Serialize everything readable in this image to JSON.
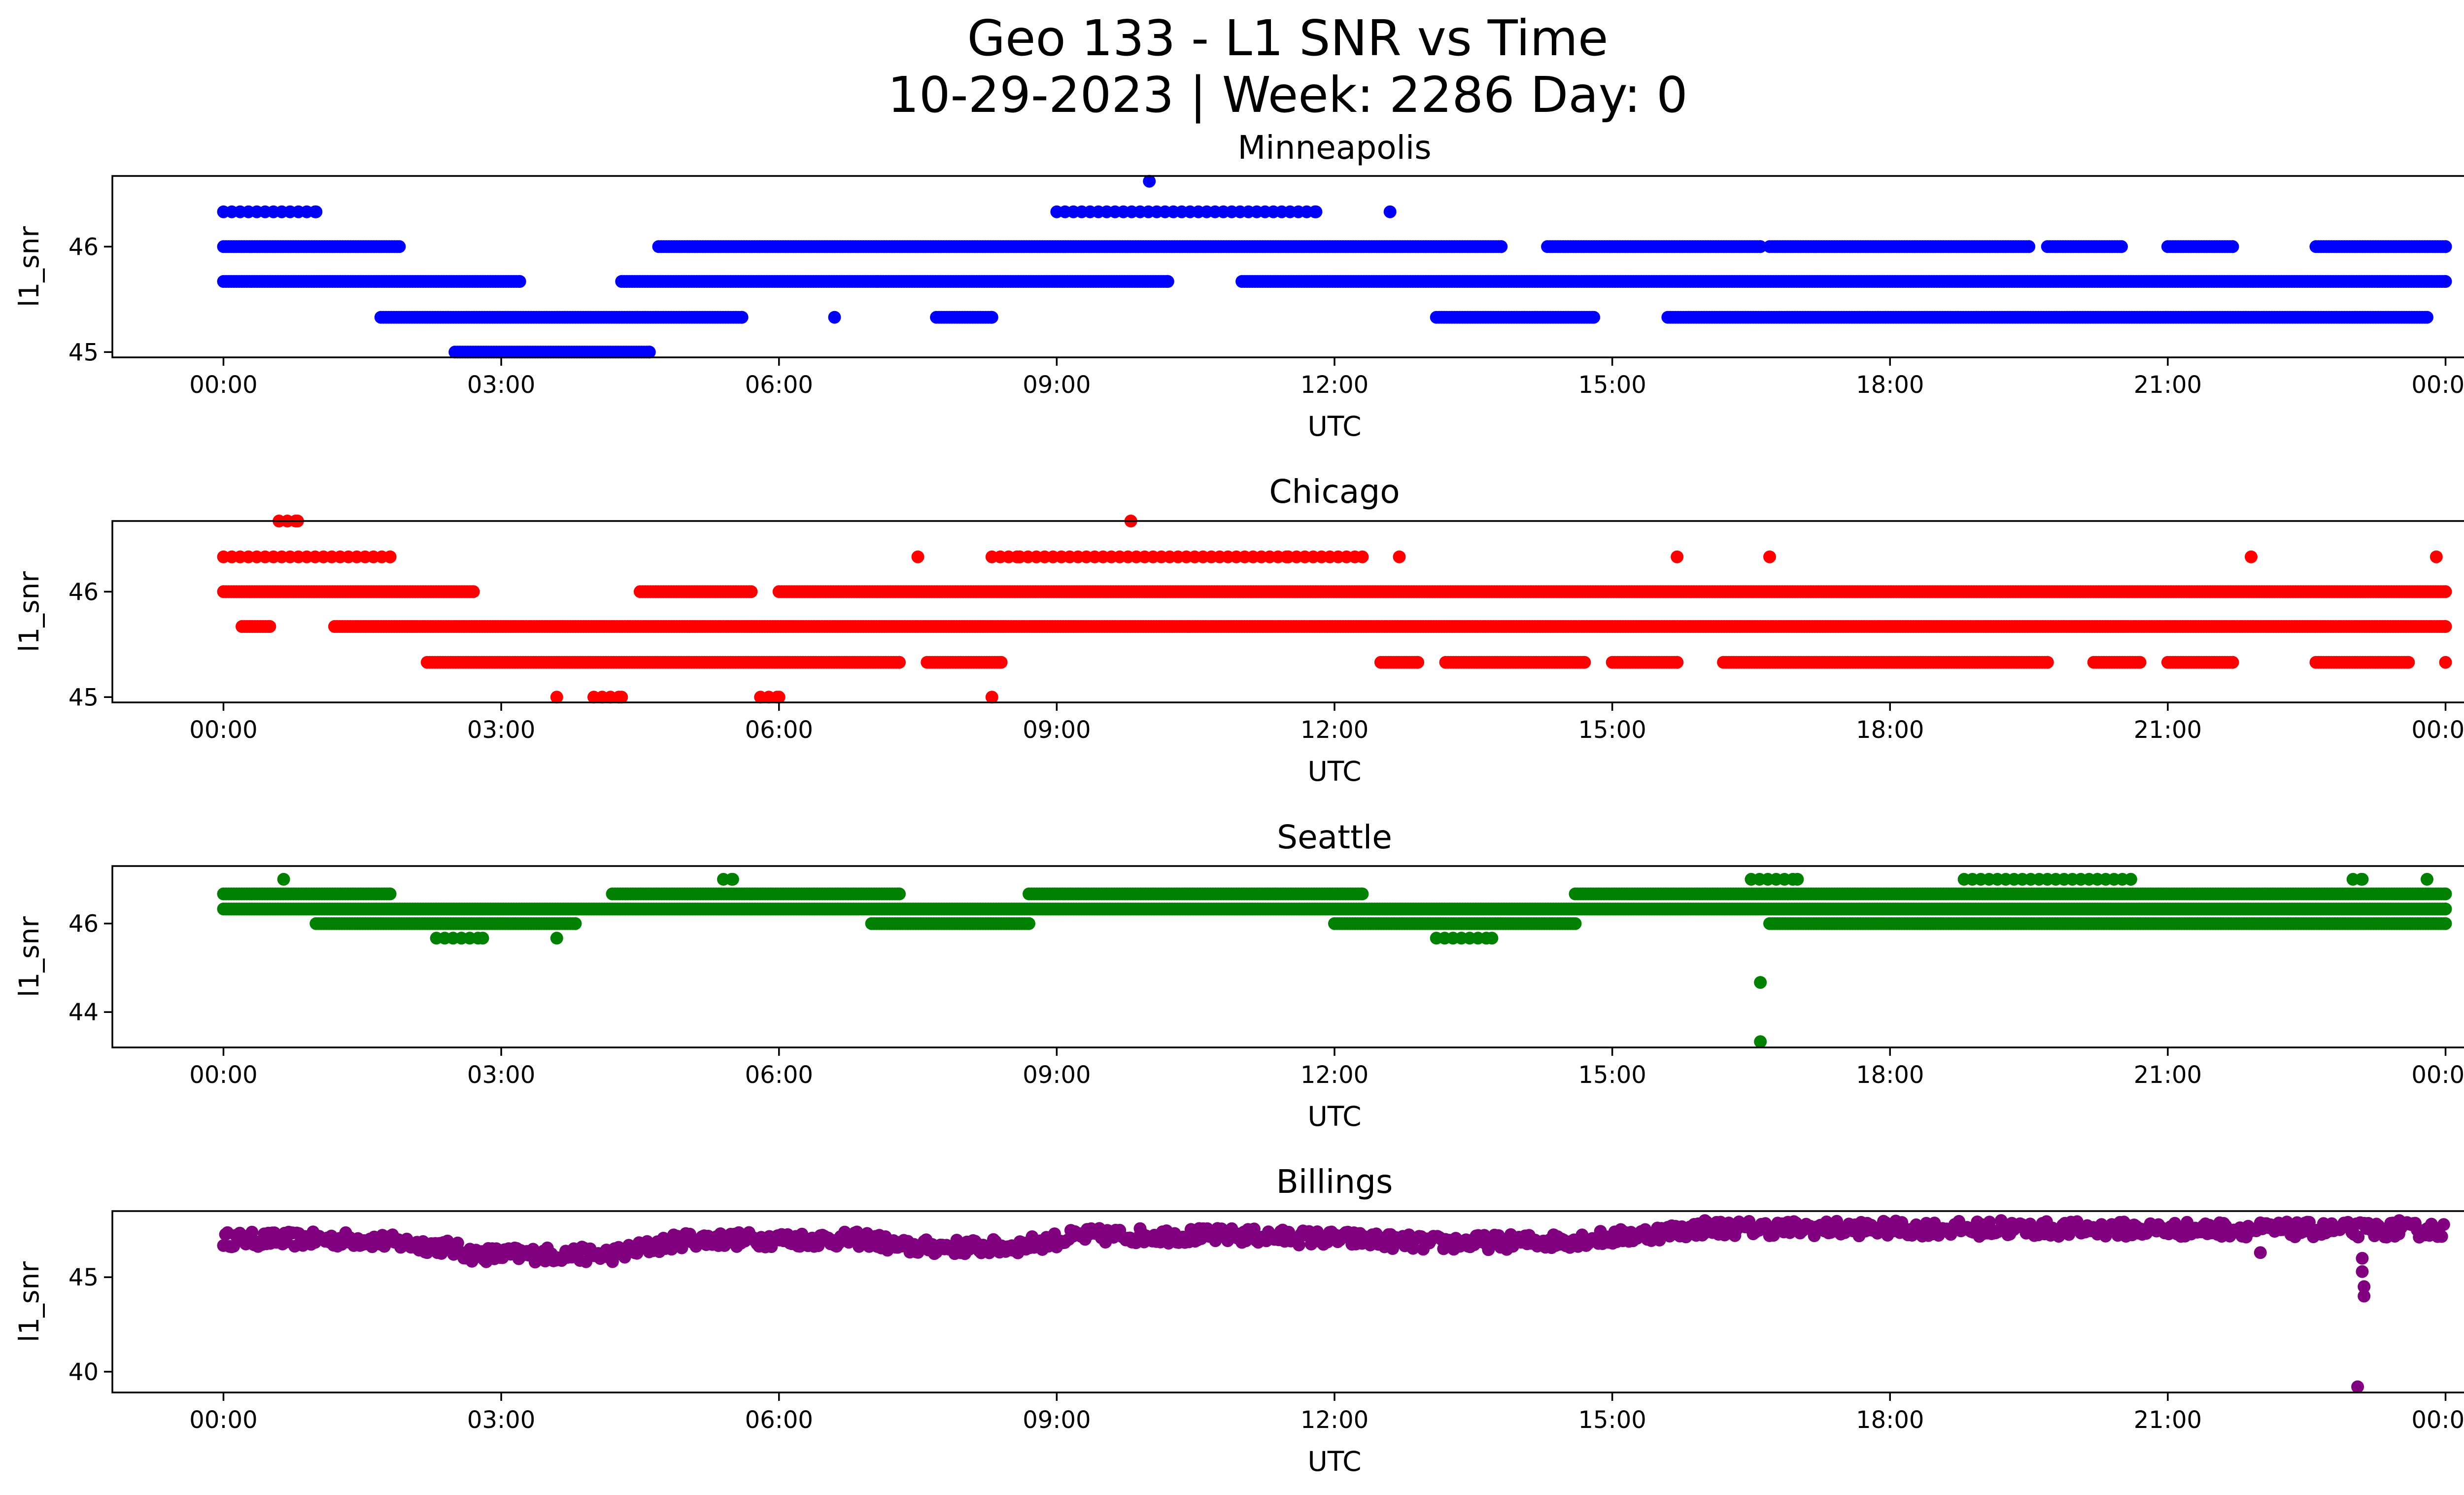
{
  "figure": {
    "title_line1": "Geo 133 - L1 SNR vs Time",
    "title_line2": "10-29-2023 | Week: 2286 Day: 0"
  },
  "chart_data": [
    {
      "type": "scatter",
      "title": "Minneapolis",
      "xlabel": "UTC",
      "ylabel": "l1_snr",
      "color": "#0000ff",
      "x_range_hours": [
        -1.2,
        25.2
      ],
      "x_ticks": [
        "00:00",
        "03:00",
        "06:00",
        "09:00",
        "12:00",
        "15:00",
        "18:00",
        "21:00",
        "00:00"
      ],
      "ylim": [
        44.95,
        46.67
      ],
      "y_ticks": [
        45,
        46
      ],
      "grid": false,
      "bands": [
        {
          "y": 46.33,
          "ranges": [
            [
              0.0,
              1.0
            ],
            [
              9.0,
              11.8
            ],
            [
              12.6,
              12.6
            ]
          ],
          "sparse": true
        },
        {
          "y": 46.0,
          "ranges": [
            [
              0.0,
              1.9
            ],
            [
              4.7,
              13.8
            ],
            [
              14.3,
              16.6
            ],
            [
              16.7,
              19.5
            ],
            [
              19.7,
              20.5
            ],
            [
              21.0,
              21.7
            ],
            [
              22.6,
              24.0
            ]
          ],
          "sparse": false
        },
        {
          "y": 45.67,
          "ranges": [
            [
              0.0,
              3.2
            ],
            [
              4.3,
              10.2
            ],
            [
              11.0,
              24.0
            ]
          ],
          "sparse": false
        },
        {
          "y": 45.33,
          "ranges": [
            [
              1.7,
              5.6
            ],
            [
              6.6,
              6.6
            ],
            [
              7.7,
              8.3
            ],
            [
              13.1,
              14.8
            ],
            [
              15.6,
              23.8
            ]
          ],
          "sparse": false
        },
        {
          "y": 45.0,
          "ranges": [
            [
              2.5,
              4.6
            ]
          ],
          "sparse": false
        }
      ],
      "outliers": [
        {
          "x": 10.0,
          "y": 46.62
        }
      ]
    },
    {
      "type": "scatter",
      "title": "Chicago",
      "xlabel": "UTC",
      "ylabel": "l1_snr",
      "color": "#ff0000",
      "x_range_hours": [
        -1.2,
        25.2
      ],
      "x_ticks": [
        "00:00",
        "03:00",
        "06:00",
        "09:00",
        "12:00",
        "15:00",
        "18:00",
        "21:00",
        "00:00"
      ],
      "ylim": [
        44.95,
        46.67
      ],
      "y_ticks": [
        45,
        46
      ],
      "grid": false,
      "bands": [
        {
          "y": 46.67,
          "ranges": [
            [
              0.6,
              0.8
            ],
            [
              9.8,
              9.8
            ]
          ],
          "sparse": true
        },
        {
          "y": 46.33,
          "ranges": [
            [
              0.0,
              1.8
            ],
            [
              7.5,
              7.5
            ],
            [
              8.3,
              8.6
            ],
            [
              8.6,
              11.5
            ],
            [
              11.5,
              12.3
            ],
            [
              12.7,
              12.7
            ],
            [
              15.7,
              15.7
            ],
            [
              16.7,
              16.7
            ],
            [
              21.9,
              21.9
            ],
            [
              23.9,
              23.9
            ]
          ],
          "sparse": true
        },
        {
          "y": 46.0,
          "ranges": [
            [
              0.0,
              2.7
            ],
            [
              4.5,
              5.7
            ],
            [
              6.0,
              24.0
            ]
          ],
          "sparse": false
        },
        {
          "y": 45.67,
          "ranges": [
            [
              0.2,
              0.5
            ],
            [
              1.2,
              24.0
            ]
          ],
          "sparse": false
        },
        {
          "y": 45.33,
          "ranges": [
            [
              2.2,
              7.3
            ],
            [
              7.6,
              8.4
            ],
            [
              12.5,
              12.9
            ],
            [
              13.2,
              14.7
            ],
            [
              15.0,
              15.7
            ],
            [
              16.2,
              19.7
            ],
            [
              20.2,
              20.7
            ],
            [
              21.0,
              21.7
            ],
            [
              22.6,
              23.6
            ],
            [
              24.0,
              24.0
            ]
          ],
          "sparse": false
        },
        {
          "y": 45.0,
          "ranges": [
            [
              3.6,
              3.6
            ],
            [
              4.0,
              4.3
            ],
            [
              5.8,
              6.0
            ],
            [
              8.3,
              8.3
            ]
          ],
          "sparse": true
        }
      ],
      "outliers": []
    },
    {
      "type": "scatter",
      "title": "Seattle",
      "xlabel": "UTC",
      "ylabel": "l1_snr",
      "color": "#008000",
      "x_range_hours": [
        -1.2,
        25.2
      ],
      "x_ticks": [
        "00:00",
        "03:00",
        "06:00",
        "09:00",
        "12:00",
        "15:00",
        "18:00",
        "21:00",
        "00:00"
      ],
      "ylim": [
        43.2,
        47.3
      ],
      "y_ticks": [
        44,
        46
      ],
      "grid": false,
      "bands": [
        {
          "y": 47.0,
          "ranges": [
            [
              0.65,
              0.65
            ],
            [
              5.4,
              5.5
            ],
            [
              16.5,
              17.0
            ],
            [
              18.8,
              20.6
            ],
            [
              23.0,
              23.1
            ],
            [
              23.8,
              23.8
            ]
          ],
          "sparse": true
        },
        {
          "y": 46.67,
          "ranges": [
            [
              0.0,
              1.8
            ],
            [
              4.2,
              7.3
            ],
            [
              8.7,
              12.3
            ],
            [
              14.6,
              24.0
            ]
          ],
          "sparse": false
        },
        {
          "y": 46.33,
          "ranges": [
            [
              0.0,
              24.0
            ]
          ],
          "sparse": false
        },
        {
          "y": 46.0,
          "ranges": [
            [
              1.0,
              3.8
            ],
            [
              7.0,
              8.7
            ],
            [
              12.0,
              14.6
            ],
            [
              16.7,
              24.0
            ]
          ],
          "sparse": false
        },
        {
          "y": 45.67,
          "ranges": [
            [
              2.3,
              2.8
            ],
            [
              3.6,
              3.6
            ],
            [
              13.1,
              13.7
            ]
          ],
          "sparse": true
        }
      ],
      "outliers": [
        {
          "x": 16.6,
          "y": 44.67
        },
        {
          "x": 16.6,
          "y": 43.33
        }
      ]
    },
    {
      "type": "scatter",
      "title": "Billings",
      "xlabel": "UTC",
      "ylabel": "l1_snr",
      "color": "#800080",
      "x_range_hours": [
        -1.2,
        25.2
      ],
      "x_ticks": [
        "00:00",
        "03:00",
        "06:00",
        "09:00",
        "12:00",
        "15:00",
        "18:00",
        "21:00",
        "00:00"
      ],
      "ylim": [
        38.9,
        48.5
      ],
      "y_ticks": [
        40,
        45
      ],
      "grid": false,
      "curve": [
        [
          0.0,
          47.0
        ],
        [
          1.5,
          47.0
        ],
        [
          2.4,
          46.6
        ],
        [
          2.7,
          46.2
        ],
        [
          4.2,
          46.2
        ],
        [
          4.6,
          46.6
        ],
        [
          5.0,
          47.0
        ],
        [
          7.0,
          47.0
        ],
        [
          7.3,
          46.6
        ],
        [
          8.5,
          46.6
        ],
        [
          9.3,
          47.2
        ],
        [
          11.0,
          47.2
        ],
        [
          12.3,
          47.0
        ],
        [
          13.0,
          46.8
        ],
        [
          14.3,
          46.9
        ],
        [
          15.0,
          47.1
        ],
        [
          16.0,
          47.6
        ],
        [
          24.0,
          47.5
        ]
      ],
      "spread": 0.8,
      "outliers": [
        {
          "x": 23.1,
          "y": 46.0
        },
        {
          "x": 23.1,
          "y": 45.3
        },
        {
          "x": 23.12,
          "y": 44.5
        },
        {
          "x": 23.12,
          "y": 44.0
        },
        {
          "x": 23.05,
          "y": 39.2
        },
        {
          "x": 22.0,
          "y": 46.3
        },
        {
          "x": 23.5,
          "y": 48.0
        },
        {
          "x": 16.0,
          "y": 48.0
        },
        {
          "x": 19.2,
          "y": 48.0
        }
      ]
    }
  ]
}
